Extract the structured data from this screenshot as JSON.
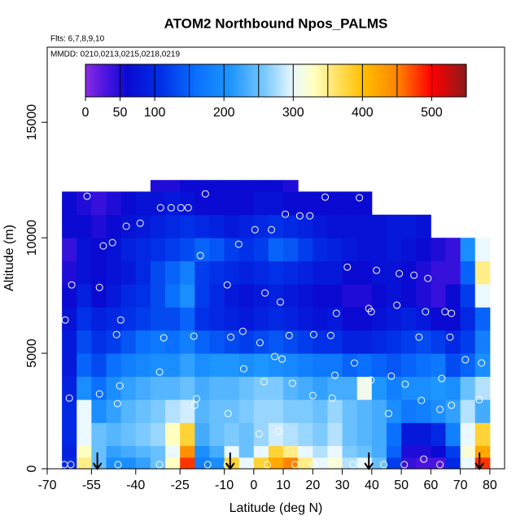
{
  "chart_data": {
    "type": "heatmap",
    "title": "ATOM2 Northbound Npos_PALMS",
    "subtitle": "Flts: 6,7,8,9,10",
    "annotation": "MMDD: 0210,0213,0215,0218,0219",
    "xlabel": "Latitude (deg N)",
    "ylabel": "Altitude (m)",
    "xlim": [
      -70,
      85
    ],
    "ylim": [
      0,
      18250
    ],
    "xticks": [
      -70,
      -55,
      -40,
      -25,
      -10,
      0,
      10,
      20,
      30,
      40,
      50,
      60,
      70,
      80
    ],
    "yticks": [
      0,
      5000,
      10000,
      15000
    ],
    "x_edges": [
      -65,
      -60,
      -55,
      -50,
      -45,
      -40,
      -35,
      -30,
      -25,
      -20,
      -15,
      -10,
      -5,
      0,
      5,
      10,
      15,
      20,
      25,
      30,
      35,
      40,
      45,
      50,
      55,
      60,
      65,
      70,
      75,
      80
    ],
    "y_edges": [
      0,
      500,
      1000,
      2000,
      3000,
      4000,
      5000,
      6000,
      7000,
      8000,
      9000,
      10000,
      11000,
      12000,
      12500
    ],
    "z": [
      [
        100,
        350,
        250,
        200,
        200,
        220,
        250,
        330,
        480,
        180,
        200,
        380,
        300,
        380,
        420,
        450,
        350,
        300,
        320,
        280,
        300,
        250,
        120,
        40,
        30,
        30,
        100,
        300,
        480
      ],
      [
        90,
        330,
        250,
        220,
        230,
        240,
        250,
        300,
        440,
        200,
        230,
        300,
        250,
        300,
        380,
        350,
        300,
        280,
        300,
        260,
        250,
        230,
        150,
        50,
        50,
        60,
        120,
        320,
        420
      ],
      [
        100,
        300,
        250,
        240,
        250,
        260,
        270,
        330,
        380,
        230,
        250,
        260,
        250,
        270,
        290,
        280,
        270,
        260,
        280,
        250,
        240,
        230,
        160,
        80,
        80,
        100,
        180,
        300,
        380
      ],
      [
        100,
        300,
        200,
        220,
        240,
        250,
        260,
        280,
        290,
        240,
        250,
        250,
        260,
        270,
        270,
        260,
        260,
        250,
        270,
        250,
        240,
        230,
        200,
        170,
        180,
        200,
        220,
        280,
        230
      ],
      [
        90,
        200,
        160,
        200,
        220,
        230,
        240,
        240,
        250,
        230,
        240,
        240,
        250,
        260,
        260,
        240,
        230,
        220,
        230,
        230,
        310,
        210,
        180,
        200,
        200,
        210,
        200,
        250,
        280
      ],
      [
        80,
        150,
        130,
        160,
        180,
        190,
        200,
        200,
        220,
        200,
        210,
        210,
        200,
        210,
        200,
        190,
        180,
        170,
        170,
        150,
        160,
        150,
        140,
        150,
        160,
        170,
        130,
        150,
        200
      ],
      [
        80,
        130,
        110,
        120,
        140,
        160,
        170,
        160,
        180,
        150,
        140,
        130,
        120,
        130,
        140,
        130,
        120,
        110,
        110,
        90,
        90,
        100,
        110,
        120,
        130,
        120,
        100,
        120,
        180
      ],
      [
        70,
        110,
        90,
        100,
        110,
        120,
        130,
        130,
        150,
        110,
        100,
        90,
        80,
        90,
        100,
        90,
        80,
        70,
        80,
        60,
        60,
        70,
        80,
        90,
        80,
        60,
        60,
        100,
        150
      ],
      [
        60,
        90,
        60,
        80,
        100,
        110,
        130,
        160,
        200,
        120,
        100,
        80,
        70,
        80,
        90,
        80,
        70,
        60,
        60,
        50,
        50,
        60,
        70,
        60,
        50,
        40,
        60,
        120,
        300
      ],
      [
        50,
        70,
        60,
        70,
        80,
        100,
        130,
        150,
        180,
        120,
        110,
        100,
        90,
        100,
        110,
        100,
        90,
        80,
        80,
        60,
        60,
        70,
        70,
        60,
        50,
        40,
        40,
        150,
        350
      ],
      [
        40,
        70,
        60,
        70,
        90,
        100,
        110,
        120,
        130,
        150,
        140,
        120,
        110,
        120,
        150,
        140,
        120,
        100,
        90,
        80,
        70,
        70,
        80,
        70,
        60,
        50,
        40,
        200,
        300
      ],
      [
        60,
        60,
        50,
        60,
        70,
        80,
        90,
        100,
        110,
        100,
        90,
        80,
        90,
        100,
        110,
        100,
        90,
        80,
        70,
        70,
        70,
        70,
        80,
        80,
        70,
        null,
        null,
        null,
        null
      ],
      [
        60,
        50,
        40,
        50,
        60,
        70,
        70,
        80,
        70,
        60,
        60,
        60,
        60,
        70,
        70,
        60,
        60,
        60,
        60,
        60,
        60,
        null,
        null,
        null,
        null,
        null,
        null,
        null,
        null
      ],
      [
        null,
        null,
        null,
        null,
        null,
        null,
        50,
        50,
        60,
        60,
        60,
        60,
        60,
        60,
        60,
        50,
        null,
        null,
        null,
        null,
        null,
        null,
        null,
        null,
        null,
        null,
        null,
        null,
        null
      ]
    ],
    "colorbar": {
      "lim": [
        0,
        550
      ],
      "ticks": [
        0,
        50,
        100,
        200,
        300,
        400,
        500
      ],
      "breaks": [
        50,
        100,
        150,
        200,
        250,
        300,
        350,
        400,
        450,
        500
      ],
      "stops": [
        {
          "value": 0,
          "color": "#8a2be2"
        },
        {
          "value": 30,
          "color": "#4a14e0"
        },
        {
          "value": 60,
          "color": "#0a0ad2"
        },
        {
          "value": 110,
          "color": "#0030e8"
        },
        {
          "value": 160,
          "color": "#0a70ff"
        },
        {
          "value": 210,
          "color": "#1e96ff"
        },
        {
          "value": 260,
          "color": "#7ccaff"
        },
        {
          "value": 300,
          "color": "#eaf8ff"
        },
        {
          "value": 330,
          "color": "#ffffc0"
        },
        {
          "value": 360,
          "color": "#ffe46a"
        },
        {
          "value": 400,
          "color": "#ffc000"
        },
        {
          "value": 450,
          "color": "#ff8400"
        },
        {
          "value": 500,
          "color": "#ff0000"
        },
        {
          "value": 550,
          "color": "#8b1a1a"
        }
      ]
    },
    "points": {
      "x": [
        -56.5,
        -31.6,
        -28,
        -24.7,
        -22.2,
        -16.4,
        24.2,
        35.8,
        10.7,
        15.6,
        19,
        -43.2,
        -38.5,
        0.4,
        6,
        -5.1,
        -51,
        -47.9,
        -18.1,
        31.7,
        41.6,
        49.3,
        54.3,
        59,
        -9,
        -61.7,
        -52.3,
        3.8,
        9,
        28,
        39,
        39.8,
        48.5,
        58.2,
        64.8,
        67,
        -45.1,
        -63.9,
        -3.7,
        -7.8,
        -20.3,
        -30.5,
        -46.5,
        12,
        20.3,
        26.1,
        2.1,
        56,
        66.5,
        71.7,
        77.2,
        7.1,
        9.6,
        -3.4,
        34.1,
        27.5,
        -31.9,
        46.6,
        63.7,
        3.5,
        13.1,
        -45.4,
        39.7,
        -52.3,
        20,
        26.6,
        51.3,
        -62.5,
        -46.2,
        -19.4,
        56.8,
        76.4,
        -20,
        45.7,
        67,
        -8.7,
        63.1,
        8.5,
        1.8,
        -64.2,
        -62,
        -46,
        -31.9,
        -15.6,
        -9,
        4.6,
        14,
        20.3,
        26.6,
        33.6,
        44.1,
        51,
        57.6,
        63.1,
        72
      ],
      "y": [
        11800,
        11300,
        11300,
        11300,
        11300,
        11900,
        11760,
        11730,
        11020,
        10950,
        10950,
        10500,
        10630,
        10350,
        10350,
        9720,
        9650,
        9790,
        9230,
        8730,
        8590,
        8450,
        8380,
        8240,
        7960,
        7960,
        7850,
        7610,
        7220,
        6730,
        6940,
        6800,
        7080,
        6800,
        6800,
        6730,
        6440,
        6440,
        5950,
        5700,
        5740,
        5670,
        5810,
        5770,
        5810,
        5770,
        5460,
        5700,
        5700,
        4720,
        4580,
        4860,
        4750,
        4330,
        4580,
        4050,
        4190,
        4010,
        3910,
        3770,
        3700,
        3590,
        3840,
        3240,
        3170,
        3060,
        3660,
        3060,
        2820,
        3030,
        2960,
        2990,
        2750,
        2390,
        2750,
        2390,
        2570,
        1620,
        1510,
        180,
        180,
        180,
        180,
        180,
        180,
        180,
        180,
        180,
        180,
        180,
        180,
        180,
        420,
        180,
        180
      ]
    },
    "arrows_x": [
      -53,
      -8,
      39,
      76.5
    ]
  }
}
